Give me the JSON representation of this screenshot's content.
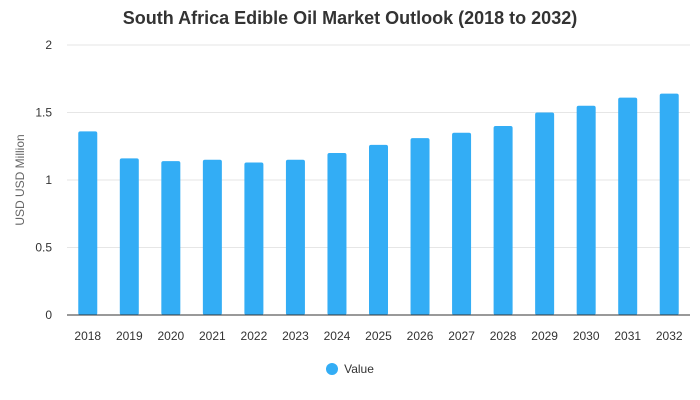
{
  "chart_data": {
    "type": "bar",
    "title": "South Africa Edible Oil Market Outlook (2018 to 2032)",
    "xlabel": "",
    "ylabel": "USD USD Million",
    "categories": [
      "2018",
      "2019",
      "2020",
      "2021",
      "2022",
      "2023",
      "2024",
      "2025",
      "2026",
      "2027",
      "2028",
      "2029",
      "2030",
      "2031",
      "2032"
    ],
    "series": [
      {
        "name": "Value",
        "values": [
          1.36,
          1.16,
          1.14,
          1.15,
          1.13,
          1.15,
          1.2,
          1.26,
          1.31,
          1.35,
          1.4,
          1.5,
          1.55,
          1.61,
          1.64
        ]
      }
    ],
    "ylim": [
      0,
      2
    ],
    "yticks": [
      "0",
      "0.5",
      "1",
      "1.5",
      "2"
    ],
    "grid": true,
    "legend_position": "bottom",
    "colors": {
      "bar": "#33adf5",
      "grid": "#e6e6e6",
      "axis": "#333333",
      "text": "#333333"
    }
  }
}
